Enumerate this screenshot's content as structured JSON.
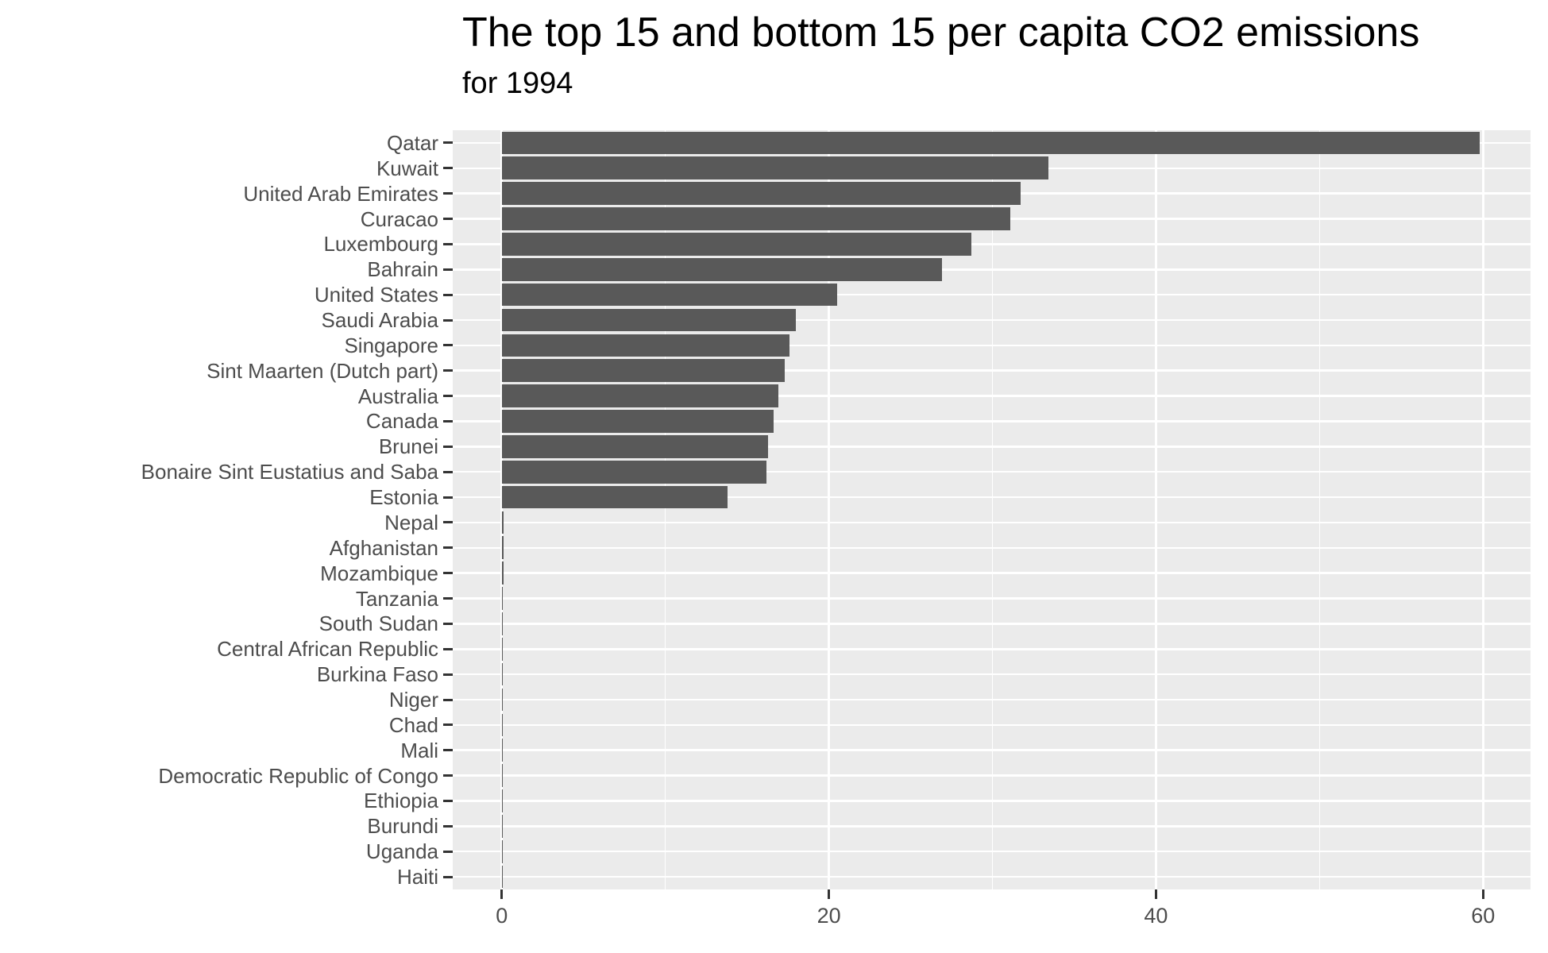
{
  "title": "The top 15 and bottom 15 per capita CO2 emissions",
  "subtitle": "for 1994",
  "colors": {
    "bar": "#595959",
    "panel_background": "#EBEBEB",
    "gridline": "#FFFFFF",
    "axis_text": "#4D4D4D",
    "tick_mark": "#333333",
    "title_text": "#000000"
  },
  "chart_data": {
    "type": "bar",
    "orientation": "horizontal",
    "title": "The top 15 and bottom 15 per capita CO2 emissions",
    "subtitle": "for 1994",
    "xlabel": "",
    "ylabel": "",
    "grid": true,
    "legend": false,
    "xlim": [
      -3,
      62.9
    ],
    "x_major_ticks": [
      0,
      20,
      40,
      60
    ],
    "x_minor_gridlines": [
      10,
      30,
      50
    ],
    "categories": [
      "Qatar",
      "Kuwait",
      "United Arab Emirates",
      "Curacao",
      "Luxembourg",
      "Bahrain",
      "United States",
      "Saudi Arabia",
      "Singapore",
      "Sint Maarten (Dutch part)",
      "Australia",
      "Canada",
      "Brunei",
      "Bonaire Sint Eustatius and Saba",
      "Estonia",
      "Nepal",
      "Afghanistan",
      "Mozambique",
      "Tanzania",
      "South Sudan",
      "Central African Republic",
      "Burkina Faso",
      "Niger",
      "Chad",
      "Mali",
      "Democratic Republic of Congo",
      "Ethiopia",
      "Burundi",
      "Uganda",
      "Haiti"
    ],
    "values": [
      59.8,
      33.4,
      31.7,
      31.1,
      28.7,
      26.9,
      20.5,
      18.0,
      17.6,
      17.3,
      16.9,
      16.6,
      16.3,
      16.2,
      13.8,
      0.1,
      0.09,
      0.09,
      0.08,
      0.08,
      0.07,
      0.07,
      0.06,
      0.06,
      0.05,
      0.05,
      0.04,
      0.04,
      0.03,
      0.03
    ]
  }
}
